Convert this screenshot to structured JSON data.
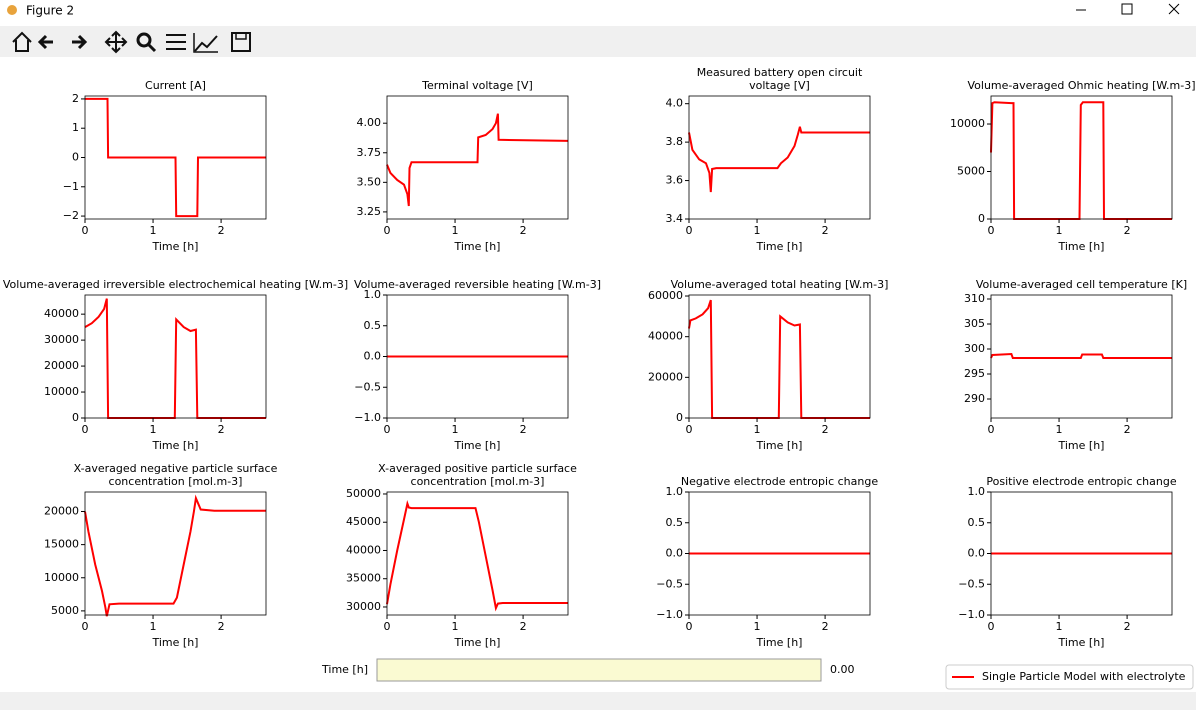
{
  "window": {
    "title": "Figure 2"
  },
  "chart_data": [
    {
      "type": "line",
      "title": [
        "Current [A]"
      ],
      "xlabel": "Time [h]",
      "color": "#ff0000",
      "x": [
        0,
        0.33,
        0.34,
        1.33,
        1.34,
        1.65,
        1.66,
        2.66
      ],
      "values": [
        2,
        2,
        0,
        0,
        -2,
        -2,
        0,
        0
      ],
      "xlim": [
        0,
        2.66
      ],
      "xticks": [
        0,
        1,
        2
      ],
      "ylim": [
        -2.1,
        2.1
      ],
      "yticks": [
        {
          "value": -2,
          "label": "−2"
        },
        {
          "value": -1,
          "label": "−1"
        },
        0,
        1,
        2
      ]
    },
    {
      "type": "line",
      "title": [
        "Terminal voltage [V]"
      ],
      "xlabel": "Time [h]",
      "color": "#ff0000",
      "x": [
        0,
        0.05,
        0.15,
        0.25,
        0.3,
        0.32,
        0.33,
        0.36,
        1.3,
        1.33,
        1.34,
        1.45,
        1.55,
        1.6,
        1.63,
        1.64,
        2.66
      ],
      "values": [
        3.65,
        3.58,
        3.52,
        3.48,
        3.4,
        3.3,
        3.62,
        3.67,
        3.67,
        3.67,
        3.88,
        3.9,
        3.95,
        4.0,
        4.08,
        3.86,
        3.85
      ],
      "xlim": [
        0,
        2.66
      ],
      "xticks": [
        0,
        1,
        2
      ],
      "ylim": [
        3.19,
        4.23
      ],
      "yticks": [
        3.25,
        {
          "value": 3.5,
          "label": "3.50"
        },
        3.75,
        {
          "value": 4,
          "label": "4.00"
        }
      ]
    },
    {
      "type": "line",
      "title": [
        "Measured battery open circuit",
        "voltage [V]"
      ],
      "xlabel": "Time [h]",
      "color": "#ff0000",
      "x": [
        0,
        0.05,
        0.15,
        0.25,
        0.3,
        0.32,
        0.34,
        0.4,
        1.3,
        1.35,
        1.45,
        1.55,
        1.6,
        1.63,
        1.65,
        2.66
      ],
      "values": [
        3.85,
        3.76,
        3.71,
        3.69,
        3.64,
        3.54,
        3.66,
        3.665,
        3.665,
        3.69,
        3.72,
        3.78,
        3.84,
        3.88,
        3.85,
        3.85
      ],
      "xlim": [
        0,
        2.66
      ],
      "xticks": [
        0,
        1,
        2
      ],
      "ylim": [
        3.4,
        4.04
      ],
      "yticks": [
        3.4,
        3.6,
        3.8,
        {
          "value": 4,
          "label": "4.0"
        }
      ]
    },
    {
      "type": "line",
      "title": [
        "Volume-averaged Ohmic heating [W.m-3]"
      ],
      "xlabel": "Time [h]",
      "color": "#ff0000",
      "x": [
        0,
        0.02,
        0.05,
        0.3,
        0.33,
        0.34,
        1.3,
        1.32,
        1.35,
        1.62,
        1.65,
        1.66,
        2.66
      ],
      "values": [
        7000,
        12200,
        12300,
        12200,
        12200,
        0,
        0,
        12000,
        12300,
        12300,
        12300,
        0,
        0
      ],
      "xlim": [
        0,
        2.66
      ],
      "xticks": [
        0,
        1,
        2
      ],
      "ylim": [
        0,
        12950
      ],
      "yticks": [
        0,
        5000,
        10000
      ]
    },
    {
      "type": "line",
      "title": [
        "Volume-averaged irreversible electrochemical heating [W.m-3]"
      ],
      "xlabel": "Time [h]",
      "color": "#ff0000",
      "x": [
        0,
        0.1,
        0.2,
        0.28,
        0.32,
        0.34,
        1.32,
        1.34,
        1.45,
        1.55,
        1.63,
        1.65,
        2.66
      ],
      "values": [
        35000,
        36500,
        39000,
        42000,
        46000,
        0,
        0,
        38000,
        35000,
        33500,
        34000,
        0,
        0
      ],
      "xlim": [
        0,
        2.66
      ],
      "xticks": [
        0,
        1,
        2
      ],
      "ylim": [
        0,
        47380
      ],
      "yticks": [
        0,
        10000,
        20000,
        30000,
        40000
      ]
    },
    {
      "type": "line",
      "title": [
        "Volume-averaged reversible heating [W.m-3]"
      ],
      "xlabel": "Time [h]",
      "color": "#ff0000",
      "x": [
        0,
        2.66
      ],
      "values": [
        0,
        0
      ],
      "xlim": [
        0,
        2.66
      ],
      "xticks": [
        0,
        1,
        2
      ],
      "ylim": [
        -1,
        1
      ],
      "yticks": [
        {
          "value": -1,
          "label": "−1.0"
        },
        {
          "value": -0.5,
          "label": "−0.5"
        },
        {
          "value": 0,
          "label": "0.0"
        },
        0.5,
        {
          "value": 1,
          "label": "1.0"
        }
      ]
    },
    {
      "type": "line",
      "title": [
        "Volume-averaged total heating [W.m-3]"
      ],
      "xlabel": "Time [h]",
      "color": "#ff0000",
      "x": [
        0,
        0.02,
        0.1,
        0.2,
        0.28,
        0.32,
        0.34,
        1.32,
        1.34,
        1.45,
        1.55,
        1.63,
        1.65,
        2.66
      ],
      "values": [
        44000,
        48000,
        49000,
        51000,
        54000,
        58000,
        0,
        0,
        50000,
        47000,
        45500,
        46000,
        0,
        0
      ],
      "xlim": [
        0,
        2.66
      ],
      "xticks": [
        0,
        1,
        2
      ],
      "ylim": [
        0,
        60500
      ],
      "yticks": [
        0,
        20000,
        40000,
        60000
      ]
    },
    {
      "type": "line",
      "title": [
        "Volume-averaged cell temperature [K]"
      ],
      "xlabel": "Time [h]",
      "color": "#ff0000",
      "x": [
        0,
        0.02,
        0.3,
        0.32,
        1.32,
        1.34,
        1.63,
        1.65,
        2.66
      ],
      "values": [
        298.2,
        298.8,
        299,
        298.2,
        298.2,
        298.9,
        298.9,
        298.2,
        298.2
      ],
      "xlim": [
        0,
        2.66
      ],
      "xticks": [
        0,
        1,
        2
      ],
      "ylim": [
        286.2,
        310.8
      ],
      "yticks": [
        290,
        295,
        300,
        305,
        310
      ]
    },
    {
      "type": "line",
      "title": [
        "X-averaged negative particle surface",
        "concentration [mol.m-3]"
      ],
      "xlabel": "Time [h]",
      "color": "#ff0000",
      "x": [
        0,
        0.05,
        0.15,
        0.25,
        0.3,
        0.32,
        0.36,
        0.5,
        1.3,
        1.35,
        1.45,
        1.55,
        1.6,
        1.63,
        1.7,
        1.9,
        2.66
      ],
      "values": [
        20000,
        17000,
        12000,
        8000,
        5500,
        4200,
        6000,
        6100,
        6100,
        7000,
        12000,
        17000,
        20000,
        22000,
        20300,
        20100,
        20100
      ],
      "xlim": [
        0,
        2.66
      ],
      "xticks": [
        0,
        1,
        2
      ],
      "ylim": [
        4380,
        22940
      ],
      "yticks": [
        5000,
        10000,
        15000,
        20000
      ]
    },
    {
      "type": "line",
      "title": [
        "X-averaged positive particle surface",
        "concentration [mol.m-3]"
      ],
      "xlabel": "Time [h]",
      "color": "#ff0000",
      "x": [
        0,
        0.05,
        0.15,
        0.25,
        0.3,
        0.32,
        0.36,
        1.3,
        1.35,
        1.45,
        1.55,
        1.6,
        1.63,
        1.7,
        2.66
      ],
      "values": [
        30500,
        34000,
        40000,
        45500,
        48300,
        47600,
        47500,
        47500,
        45000,
        39000,
        33000,
        29800,
        30600,
        30700,
        30700
      ],
      "xlim": [
        0,
        2.66
      ],
      "xticks": [
        0,
        1,
        2
      ],
      "ylim": [
        28580,
        50350
      ],
      "yticks": [
        30000,
        35000,
        40000,
        45000,
        50000
      ]
    },
    {
      "type": "line",
      "title": [
        "Negative electrode entropic change"
      ],
      "xlabel": "Time [h]",
      "color": "#ff0000",
      "x": [
        0,
        2.66
      ],
      "values": [
        0,
        0
      ],
      "xlim": [
        0,
        2.66
      ],
      "xticks": [
        0,
        1,
        2
      ],
      "ylim": [
        -1,
        1
      ],
      "yticks": [
        {
          "value": -1,
          "label": "−1.0"
        },
        {
          "value": -0.5,
          "label": "−0.5"
        },
        {
          "value": 0,
          "label": "0.0"
        },
        0.5,
        {
          "value": 1,
          "label": "1.0"
        }
      ]
    },
    {
      "type": "line",
      "title": [
        "Positive electrode entropic change"
      ],
      "xlabel": "Time [h]",
      "color": "#ff0000",
      "x": [
        0,
        2.66
      ],
      "values": [
        0,
        0
      ],
      "xlim": [
        0,
        2.66
      ],
      "xticks": [
        0,
        1,
        2
      ],
      "ylim": [
        -1,
        1
      ],
      "yticks": [
        {
          "value": -1,
          "label": "−1.0"
        },
        {
          "value": -0.5,
          "label": "−0.5"
        },
        {
          "value": 0,
          "label": "0.0"
        },
        0.5,
        {
          "value": 1,
          "label": "1.0"
        }
      ]
    }
  ],
  "slider": {
    "label": "Time [h]",
    "value": "0.00"
  },
  "legend": {
    "label": "Single Particle Model with electrolyte",
    "color": "#ff0000"
  }
}
